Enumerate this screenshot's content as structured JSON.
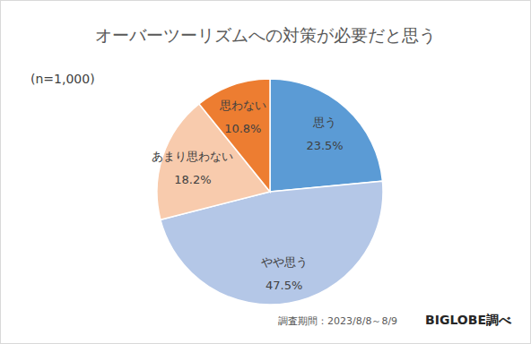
{
  "chart_data": {
    "type": "pie",
    "title": "オーバーツーリズムへの対策が必要だと思う",
    "subtitle": "(n=1,000)",
    "annotations": [
      "調査期間：2023/8/8～8/9",
      "BIGLOBE調べ"
    ],
    "categories": [
      "思う",
      "やや思う",
      "あまり思わない",
      "思わない"
    ],
    "values": [
      23.5,
      47.5,
      18.2,
      10.8
    ],
    "value_labels": [
      "23.5%",
      "47.5%",
      "18.2%",
      "10.8%"
    ],
    "colors": [
      "#5b9bd5",
      "#b4c7e7",
      "#f8cbad",
      "#ed7d31"
    ],
    "data_labels": true
  }
}
